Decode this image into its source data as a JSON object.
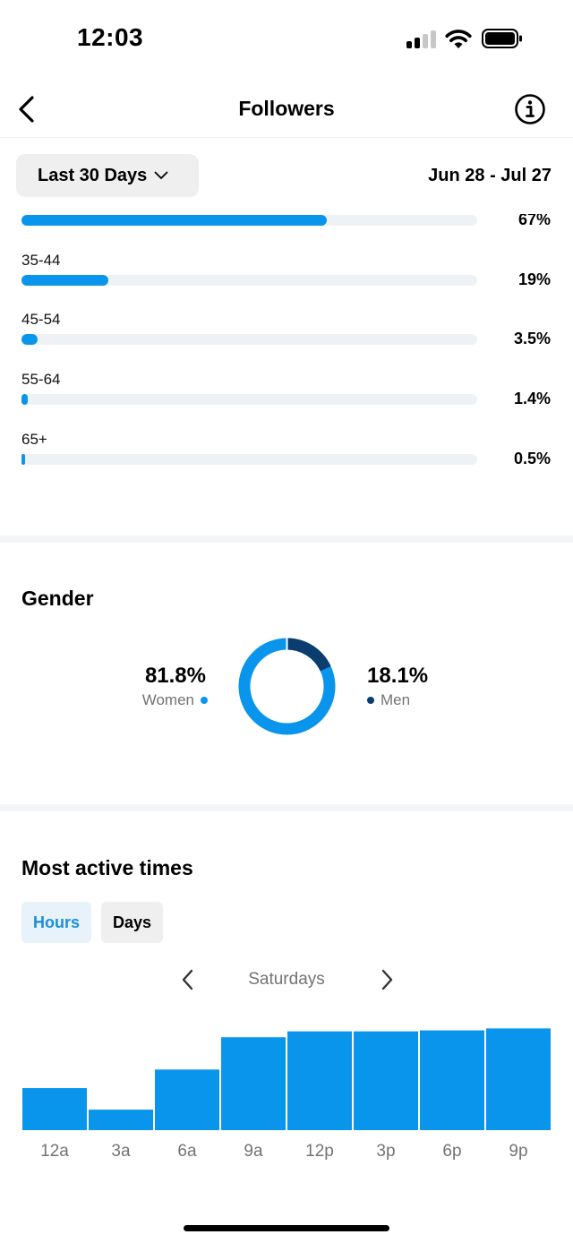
{
  "status_bar": {
    "time": "12:03"
  },
  "header": {
    "title": "Followers"
  },
  "filter": {
    "range_label": "Last 30 Days",
    "date_range": "Jun 28 - Jul 27"
  },
  "age": {
    "rows": [
      {
        "label": "",
        "percent_text": "67%",
        "fraction": 0.67
      },
      {
        "label": "35-44",
        "percent_text": "19%",
        "fraction": 0.19
      },
      {
        "label": "45-54",
        "percent_text": "3.5%",
        "fraction": 0.035
      },
      {
        "label": "55-64",
        "percent_text": "1.4%",
        "fraction": 0.014
      },
      {
        "label": "65+",
        "percent_text": "0.5%",
        "fraction": 0.005
      }
    ]
  },
  "gender": {
    "title": "Gender",
    "women": {
      "percent_text": "81.8%",
      "label": "Women",
      "value": 81.8
    },
    "men": {
      "percent_text": "18.1%",
      "label": "Men",
      "value": 18.1
    }
  },
  "active_times": {
    "title": "Most active times",
    "tabs": {
      "hours": "Hours",
      "days": "Days"
    },
    "selected_tab": "Hours",
    "day_label": "Saturdays"
  },
  "colors": {
    "accent": "#0a95ed",
    "dark_accent": "#0b3d6e",
    "track": "#eff2f5"
  },
  "chart_data": {
    "type": "bar",
    "categories": [
      "12a",
      "3a",
      "6a",
      "9a",
      "12p",
      "3p",
      "6p",
      "9p"
    ],
    "values": [
      43,
      21,
      62,
      95,
      101,
      101,
      102,
      104
    ],
    "ylim": [
      0,
      130
    ],
    "grid": false,
    "title": "",
    "xlabel": "",
    "ylabel": ""
  }
}
